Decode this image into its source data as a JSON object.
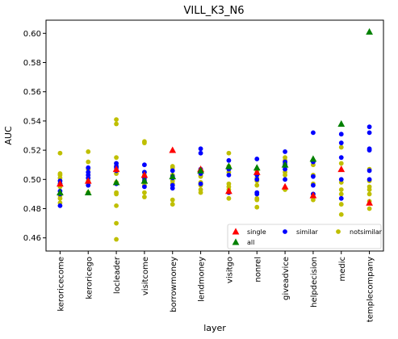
{
  "chart_data": {
    "type": "scatter",
    "title": "VILL_K3_N6",
    "xlabel": "layer",
    "ylabel": "AUC",
    "ylim": [
      0.451,
      0.609
    ],
    "yticks": [
      0.46,
      0.48,
      0.5,
      0.52,
      0.54,
      0.56,
      0.58,
      0.6
    ],
    "yticklabels": [
      "0.46",
      "0.48",
      "0.50",
      "0.52",
      "0.54",
      "0.56",
      "0.58",
      "0.60"
    ],
    "grid": false,
    "legend_position": "lower-right",
    "categories": [
      "keroricecome",
      "keroricego",
      "locleader",
      "visitcome",
      "borrowmoney",
      "lendmoney",
      "visitgo",
      "nonrel",
      "giveadvice",
      "helpdecision",
      "medic",
      "templecompany"
    ],
    "series": [
      {
        "name": "single",
        "marker": "triangle",
        "color": "#ff0000",
        "values": [
          0.497,
          0.499,
          0.507,
          0.503,
          0.52,
          0.507,
          0.492,
          0.505,
          0.495,
          0.489,
          0.507,
          0.484
        ]
      },
      {
        "name": "all",
        "marker": "triangle",
        "color": "#008000",
        "values": [
          0.491,
          0.491,
          0.498,
          0.499,
          0.502,
          0.506,
          0.509,
          0.508,
          0.51,
          0.514,
          0.538,
          0.601
        ]
      },
      {
        "name": "similar",
        "marker": "circle",
        "color": "#0000ff",
        "values": [
          [
            0.482,
            0.49,
            0.492,
            0.497,
            0.499
          ],
          [
            0.496,
            0.501,
            0.503,
            0.505,
            0.508
          ],
          [
            0.497,
            0.506,
            0.508,
            0.509,
            0.511
          ],
          [
            0.495,
            0.499,
            0.501,
            0.505,
            0.51
          ],
          [
            0.494,
            0.496,
            0.501,
            0.502,
            0.506
          ],
          [
            0.497,
            0.504,
            0.507,
            0.518,
            0.521
          ],
          [
            0.491,
            0.503,
            0.507,
            0.508,
            0.513
          ],
          [
            0.49,
            0.491,
            0.5,
            0.503,
            0.514
          ],
          [
            0.5,
            0.507,
            0.51,
            0.512,
            0.519
          ],
          [
            0.49,
            0.496,
            0.502,
            0.512,
            0.532
          ],
          [
            0.487,
            0.5,
            0.515,
            0.525,
            0.531
          ],
          [
            0.5,
            0.506,
            0.52,
            0.521,
            0.532,
            0.536
          ]
        ]
      },
      {
        "name": "notsimilar",
        "marker": "circle",
        "color": "#bfbf00",
        "values": [
          [
            0.484,
            0.487,
            0.489,
            0.495,
            0.497,
            0.499,
            0.501,
            0.503,
            0.504,
            0.518
          ],
          [
            0.491,
            0.496,
            0.499,
            0.501,
            0.503,
            0.507,
            0.512,
            0.519
          ],
          [
            0.459,
            0.47,
            0.482,
            0.49,
            0.491,
            0.498,
            0.504,
            0.509,
            0.511,
            0.515,
            0.538,
            0.541
          ],
          [
            0.488,
            0.491,
            0.496,
            0.498,
            0.5,
            0.503,
            0.505,
            0.525,
            0.526
          ],
          [
            0.483,
            0.486,
            0.497,
            0.499,
            0.501,
            0.503,
            0.508,
            0.509
          ],
          [
            0.491,
            0.493,
            0.496,
            0.497,
            0.498,
            0.502,
            0.503
          ],
          [
            0.487,
            0.493,
            0.495,
            0.497,
            0.505,
            0.509,
            0.518
          ],
          [
            0.481,
            0.486,
            0.487,
            0.496,
            0.499,
            0.501,
            0.503,
            0.506
          ],
          [
            0.493,
            0.494,
            0.503,
            0.505,
            0.507,
            0.509,
            0.511,
            0.513,
            0.515
          ],
          [
            0.486,
            0.488,
            0.49,
            0.497,
            0.503,
            0.51
          ],
          [
            0.476,
            0.483,
            0.49,
            0.493,
            0.498,
            0.511,
            0.522
          ],
          [
            0.48,
            0.485,
            0.49,
            0.493,
            0.495,
            0.499,
            0.507
          ]
        ]
      }
    ]
  }
}
